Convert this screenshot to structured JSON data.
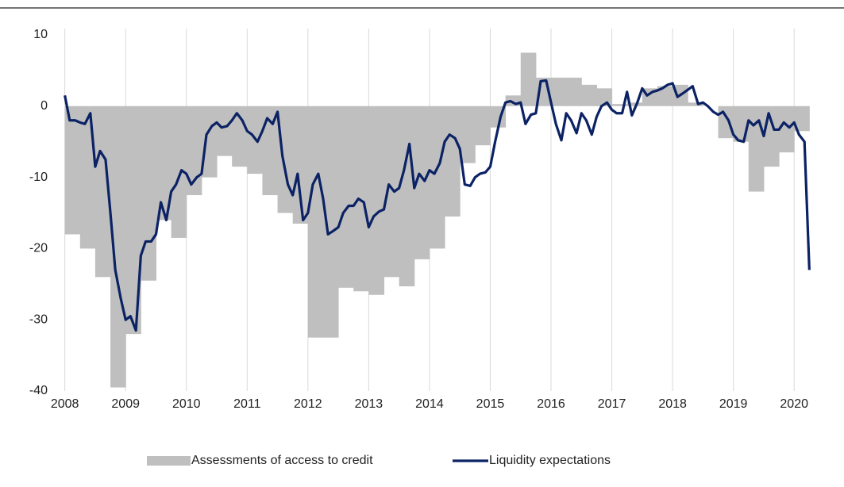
{
  "chart_data": {
    "type": "combo",
    "xlim": [
      2007.9,
      2020.35
    ],
    "xticks": [
      2008,
      2009,
      2010,
      2011,
      2012,
      2013,
      2014,
      2015,
      2016,
      2017,
      2018,
      2019,
      2020
    ],
    "ylim": [
      -40,
      10
    ],
    "yticks": [
      -40,
      -30,
      -20,
      -10,
      0,
      10
    ],
    "grid": true,
    "legend": "bottom",
    "series": [
      {
        "name": "Assessments of access to credit",
        "type": "bar",
        "color": "#bfbfbf",
        "x": [
          2008,
          2008.25,
          2008.5,
          2008.75,
          2009,
          2009.25,
          2009.5,
          2009.75,
          2010,
          2010.25,
          2010.5,
          2010.75,
          2011,
          2011.25,
          2011.5,
          2011.75,
          2012,
          2012.25,
          2012.5,
          2012.75,
          2013,
          2013.25,
          2013.5,
          2013.75,
          2014,
          2014.25,
          2014.5,
          2014.75,
          2015,
          2015.25,
          2015.5,
          2015.75,
          2016,
          2016.25,
          2016.5,
          2016.75,
          2017,
          2017.25,
          2017.5,
          2017.75,
          2018,
          2018.25,
          2018.5,
          2018.75,
          2019,
          2019.25,
          2019.5,
          2019.75,
          2020
        ],
        "values": [
          -18,
          -20,
          -24,
          -39.5,
          -32,
          -24.5,
          -16,
          -18.5,
          -12.5,
          -10,
          -7,
          -8.5,
          -9.5,
          -12.5,
          -15,
          -16.5,
          -32.5,
          -32.5,
          -25.5,
          -26,
          -26.5,
          -24,
          -25.3,
          -21.5,
          -20,
          -15.5,
          -8,
          -5.5,
          -3,
          1.5,
          7.5,
          4,
          4,
          4,
          3,
          2.5,
          0.3,
          0.5,
          2.5,
          2.8,
          3,
          0.5,
          0,
          -4.5,
          -5,
          -12,
          -8.5,
          -6.5,
          -3.5
        ]
      },
      {
        "name": "Liquidity expectations",
        "type": "line",
        "color": "#0b2265",
        "x": [
          2008,
          2008.08,
          2008.17,
          2008.25,
          2008.33,
          2008.42,
          2008.5,
          2008.58,
          2008.67,
          2008.75,
          2008.83,
          2008.92,
          2009,
          2009.08,
          2009.17,
          2009.25,
          2009.33,
          2009.42,
          2009.5,
          2009.58,
          2009.67,
          2009.75,
          2009.83,
          2009.92,
          2010,
          2010.08,
          2010.17,
          2010.25,
          2010.33,
          2010.42,
          2010.5,
          2010.58,
          2010.67,
          2010.75,
          2010.83,
          2010.92,
          2011,
          2011.08,
          2011.17,
          2011.25,
          2011.33,
          2011.42,
          2011.5,
          2011.58,
          2011.67,
          2011.75,
          2011.83,
          2011.92,
          2012,
          2012.08,
          2012.17,
          2012.25,
          2012.33,
          2012.42,
          2012.5,
          2012.58,
          2012.67,
          2012.75,
          2012.83,
          2012.92,
          2013,
          2013.08,
          2013.17,
          2013.25,
          2013.33,
          2013.42,
          2013.5,
          2013.58,
          2013.67,
          2013.75,
          2013.83,
          2013.92,
          2014,
          2014.08,
          2014.17,
          2014.25,
          2014.33,
          2014.42,
          2014.5,
          2014.58,
          2014.67,
          2014.75,
          2014.83,
          2014.92,
          2015,
          2015.08,
          2015.17,
          2015.25,
          2015.33,
          2015.42,
          2015.5,
          2015.58,
          2015.67,
          2015.75,
          2015.83,
          2015.92,
          2016,
          2016.08,
          2016.17,
          2016.25,
          2016.33,
          2016.42,
          2016.5,
          2016.58,
          2016.67,
          2016.75,
          2016.83,
          2016.92,
          2017,
          2017.08,
          2017.17,
          2017.25,
          2017.33,
          2017.42,
          2017.5,
          2017.58,
          2017.67,
          2017.75,
          2017.83,
          2017.92,
          2018,
          2018.08,
          2018.17,
          2018.25,
          2018.33,
          2018.42,
          2018.5,
          2018.58,
          2018.67,
          2018.75,
          2018.83,
          2018.92,
          2019,
          2019.08,
          2019.17,
          2019.25,
          2019.33,
          2019.42,
          2019.5,
          2019.58,
          2019.67,
          2019.75,
          2019.83,
          2019.92,
          2020,
          2020.08,
          2020.17,
          2020.25
        ],
        "values": [
          1.5,
          -2,
          -2,
          -2.3,
          -2.5,
          -1,
          -8.5,
          -6.3,
          -7.5,
          -15,
          -23,
          -27,
          -30,
          -29.5,
          -31.5,
          -21,
          -19,
          -19,
          -18,
          -13.5,
          -16,
          -12,
          -11,
          -9,
          -9.5,
          -11,
          -10,
          -9.5,
          -4,
          -2.8,
          -2.3,
          -3,
          -2.8,
          -2,
          -1,
          -2,
          -3.5,
          -4,
          -5,
          -3.5,
          -1.7,
          -2.5,
          -0.8,
          -7,
          -11,
          -12.5,
          -9.5,
          -16,
          -15,
          -11,
          -9.5,
          -13,
          -18,
          -17.5,
          -17,
          -15,
          -14,
          -14,
          -13,
          -13.5,
          -17,
          -15.5,
          -14.8,
          -14.5,
          -11,
          -12,
          -11.5,
          -9,
          -5.3,
          -11.5,
          -9.5,
          -10.5,
          -9,
          -9.5,
          -8,
          -5,
          -4,
          -4.5,
          -6,
          -11,
          -11.2,
          -10,
          -9.5,
          -9.3,
          -8.5,
          -5,
          -1.5,
          0.5,
          0.7,
          0.3,
          0.5,
          -2.5,
          -1.2,
          -1,
          3.5,
          3.6,
          0.5,
          -2.5,
          -4.8,
          -1,
          -2,
          -3.8,
          -1,
          -2,
          -4,
          -1.5,
          0,
          0.5,
          -0.5,
          -1,
          -1,
          2,
          -1.3,
          0.5,
          2.5,
          1.5,
          2,
          2.2,
          2.5,
          3,
          3.2,
          1.3,
          1.8,
          2.3,
          2.8,
          0.3,
          0.5,
          0,
          -0.8,
          -1.2,
          -0.8,
          -2,
          -4,
          -4.8,
          -5,
          -2,
          -2.7,
          -2,
          -4.2,
          -1,
          -3.3,
          -3.3,
          -2.3,
          -3,
          -2.3,
          -4,
          -5,
          -23
        ]
      }
    ]
  }
}
